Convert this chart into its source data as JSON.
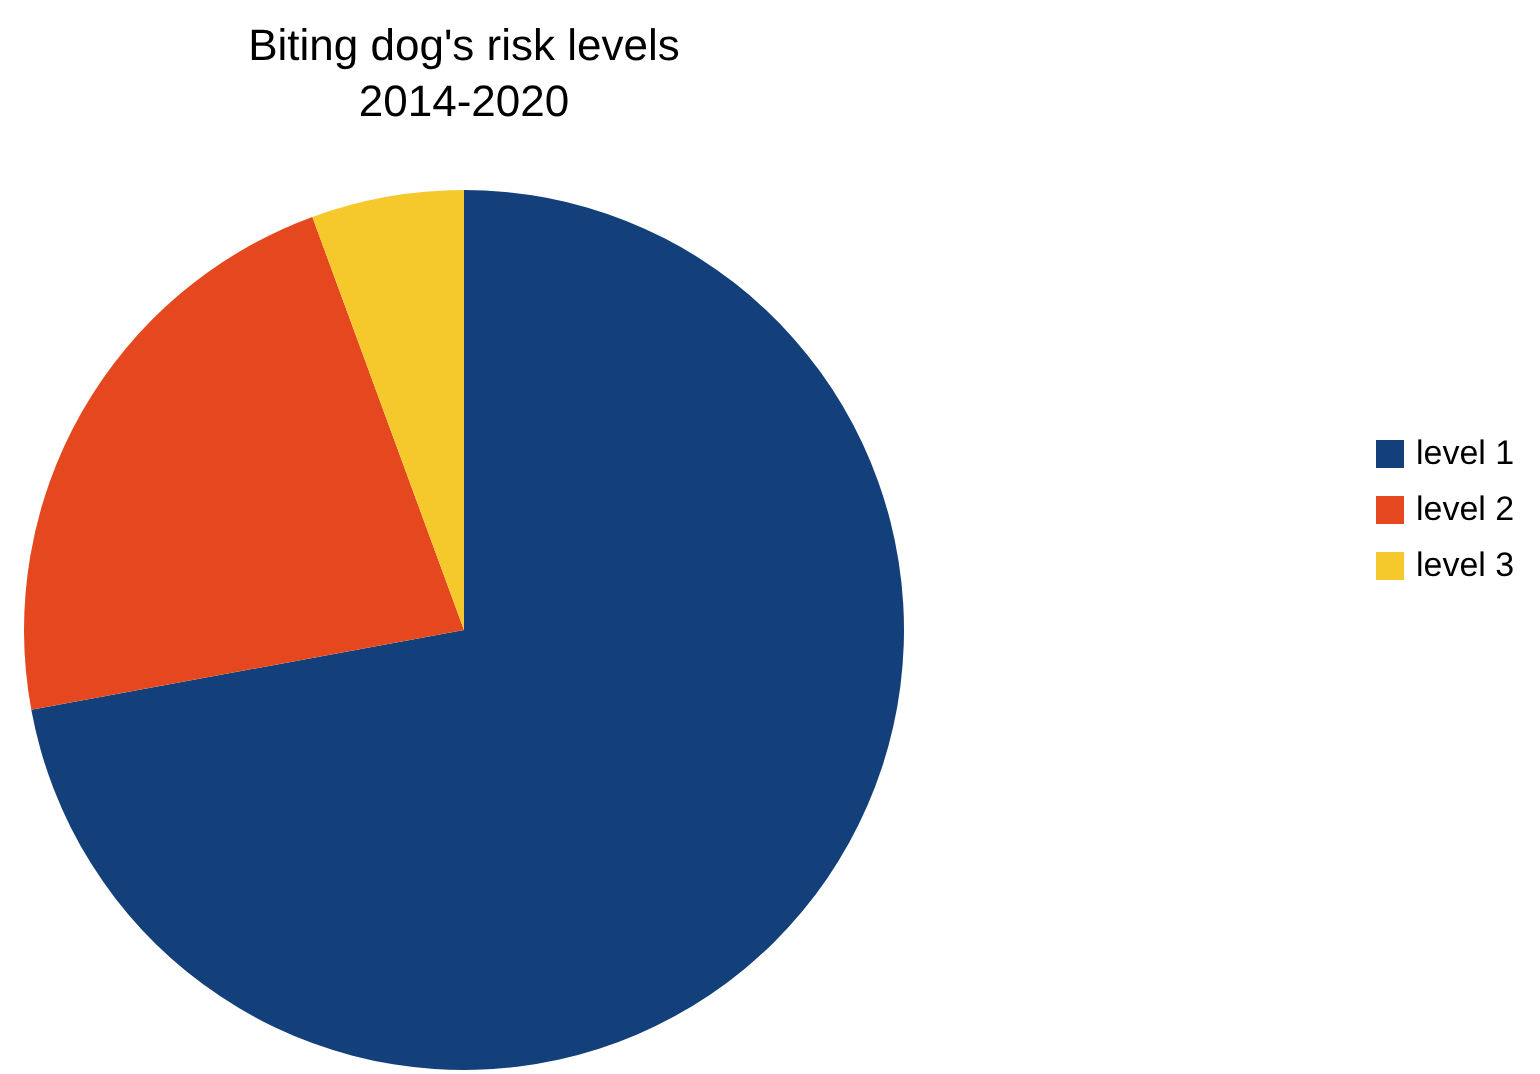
{
  "chart_data": {
    "type": "pie",
    "title": "Biting dog's risk levels\n2014-2020",
    "categories": [
      "level 1",
      "level 2",
      "level 3"
    ],
    "values": [
      72.1,
      22.3,
      5.6
    ],
    "colors": [
      "#13407a",
      "#e5481f",
      "#f5c82c"
    ],
    "legend": "right"
  }
}
